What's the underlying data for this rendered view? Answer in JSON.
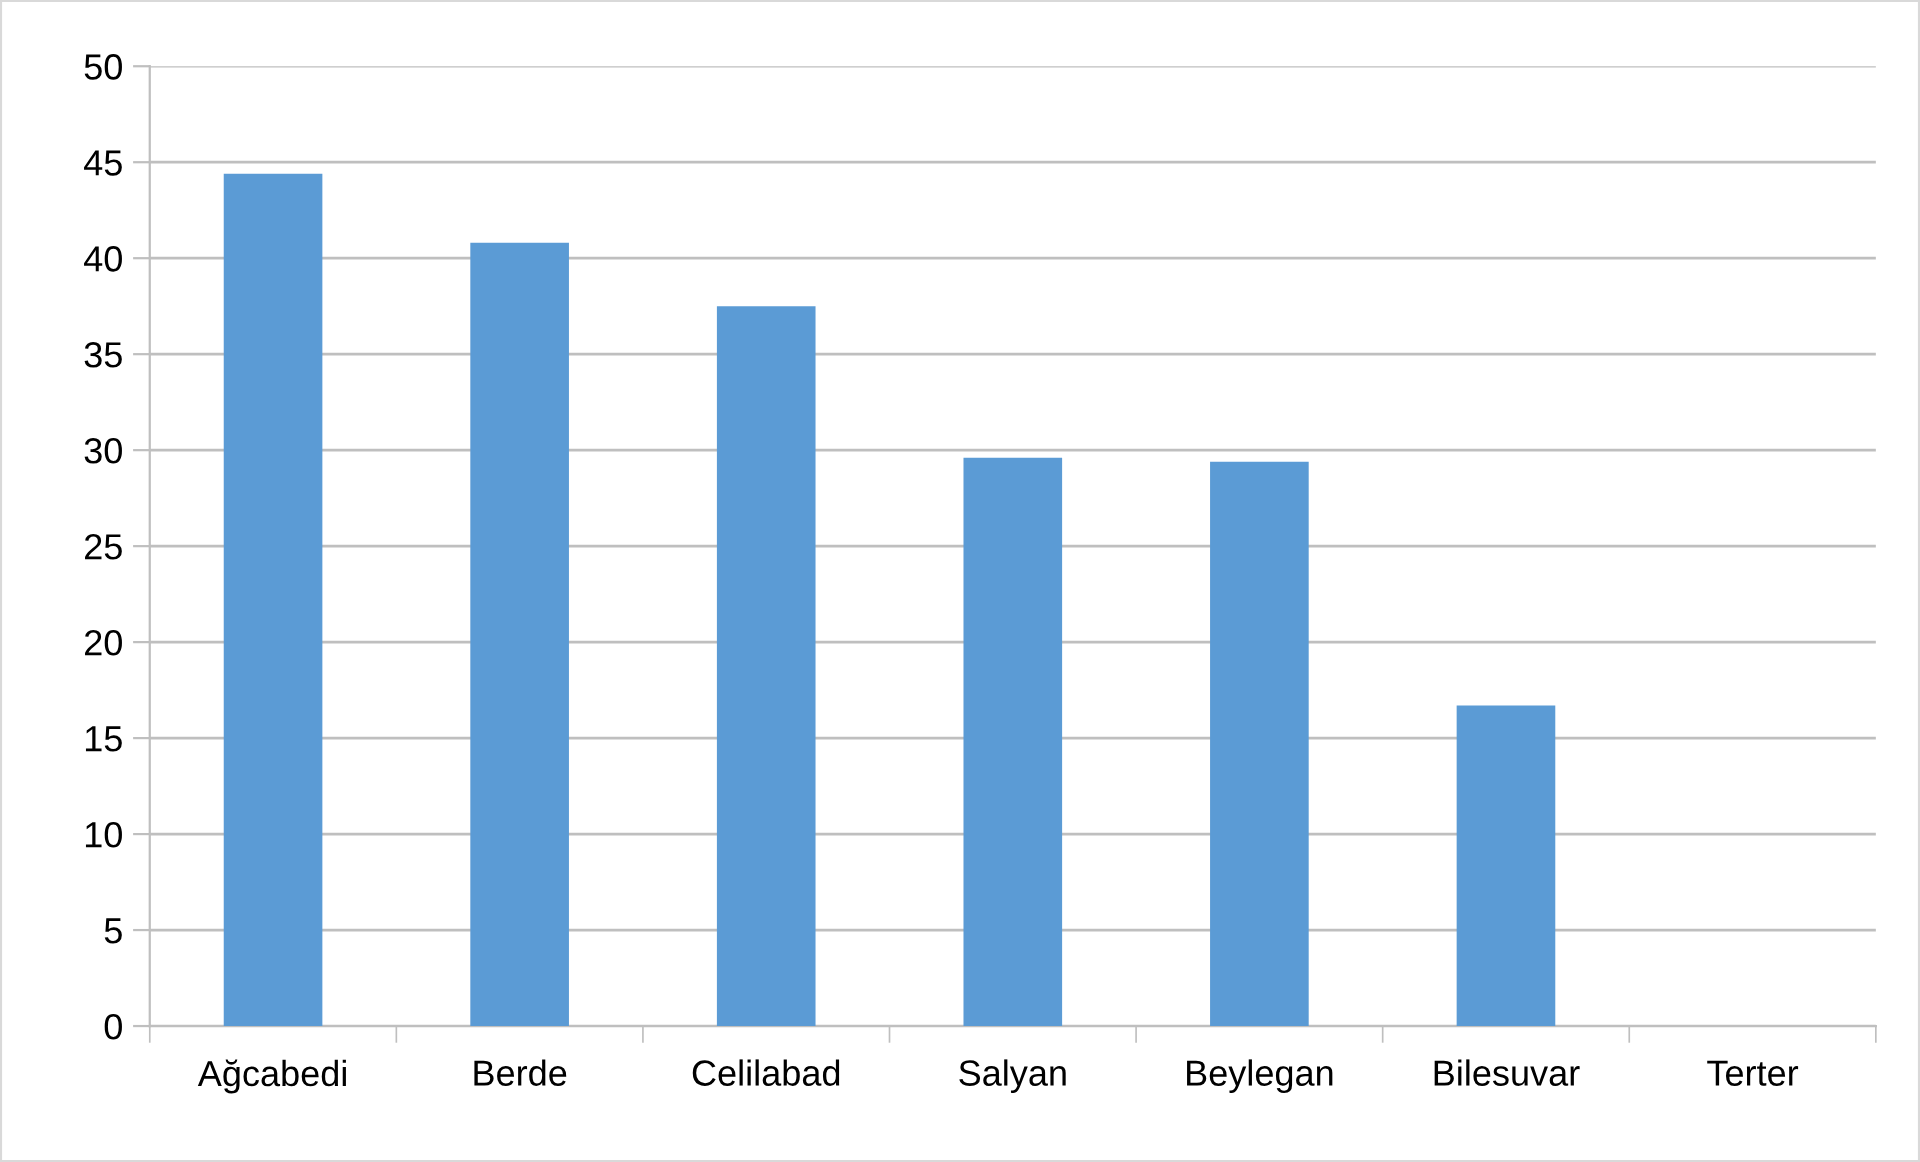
{
  "chart_data": {
    "type": "bar",
    "categories": [
      "Ağcabedi",
      "Berde",
      "Celilabad",
      "Salyan",
      "Beylegan",
      "Bilesuvar",
      "Terter"
    ],
    "values": [
      44.4,
      40.8,
      37.5,
      29.6,
      29.4,
      16.7,
      0
    ],
    "color": "#5b9bd5",
    "ylim": [
      0,
      50
    ],
    "yticks": [
      0,
      5,
      10,
      15,
      20,
      25,
      30,
      35,
      40,
      45,
      50
    ],
    "grid": "y",
    "legend": false
  }
}
